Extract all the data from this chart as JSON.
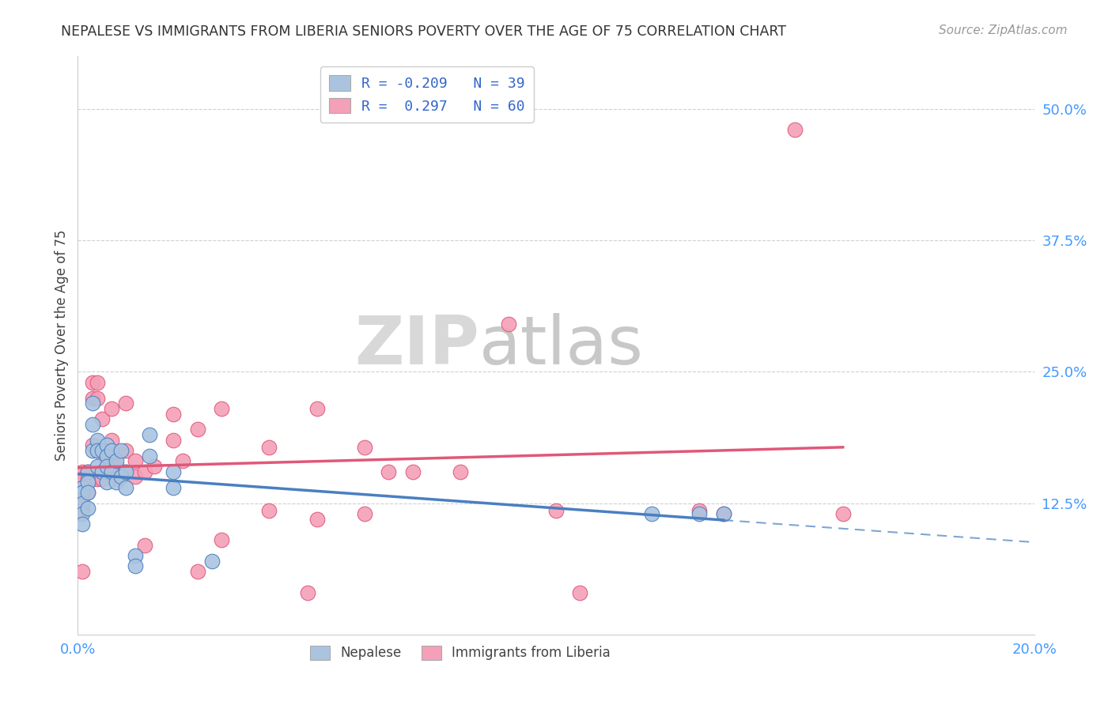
{
  "title": "NEPALESE VS IMMIGRANTS FROM LIBERIA SENIORS POVERTY OVER THE AGE OF 75 CORRELATION CHART",
  "source": "Source: ZipAtlas.com",
  "ylabel": "Seniors Poverty Over the Age of 75",
  "x_min": 0.0,
  "x_max": 0.2,
  "y_min": 0.0,
  "y_max": 0.55,
  "x_ticks": [
    0.0,
    0.04,
    0.08,
    0.12,
    0.16,
    0.2
  ],
  "x_tick_labels": [
    "0.0%",
    "",
    "",
    "",
    "",
    "20.0%"
  ],
  "y_tick_labels": [
    "12.5%",
    "25.0%",
    "37.5%",
    "50.0%"
  ],
  "y_ticks": [
    0.125,
    0.25,
    0.375,
    0.5
  ],
  "nepalese_color": "#aac4e0",
  "liberia_color": "#f4a0b8",
  "nepalese_line_color": "#4a7fc1",
  "liberia_line_color": "#e05878",
  "nepalese_R": -0.209,
  "nepalese_N": 39,
  "liberia_R": 0.297,
  "liberia_N": 60,
  "legend_label_nepalese": "Nepalese",
  "legend_label_liberia": "Immigrants from Liberia",
  "watermark_zip": "ZIP",
  "watermark_atlas": "atlas",
  "nepalese_x": [
    0.001,
    0.001,
    0.001,
    0.001,
    0.001,
    0.002,
    0.002,
    0.002,
    0.002,
    0.003,
    0.003,
    0.003,
    0.004,
    0.004,
    0.004,
    0.005,
    0.005,
    0.006,
    0.006,
    0.006,
    0.006,
    0.007,
    0.007,
    0.008,
    0.008,
    0.009,
    0.009,
    0.01,
    0.01,
    0.012,
    0.012,
    0.015,
    0.015,
    0.02,
    0.02,
    0.028,
    0.12,
    0.13,
    0.135
  ],
  "nepalese_y": [
    0.14,
    0.135,
    0.125,
    0.115,
    0.105,
    0.155,
    0.145,
    0.135,
    0.12,
    0.22,
    0.2,
    0.175,
    0.185,
    0.175,
    0.16,
    0.175,
    0.155,
    0.18,
    0.17,
    0.16,
    0.145,
    0.175,
    0.155,
    0.165,
    0.145,
    0.175,
    0.15,
    0.155,
    0.14,
    0.075,
    0.065,
    0.19,
    0.17,
    0.155,
    0.14,
    0.07,
    0.115,
    0.115,
    0.115
  ],
  "liberia_x": [
    0.001,
    0.001,
    0.001,
    0.001,
    0.001,
    0.001,
    0.002,
    0.002,
    0.002,
    0.003,
    0.003,
    0.003,
    0.003,
    0.004,
    0.004,
    0.004,
    0.004,
    0.005,
    0.005,
    0.005,
    0.006,
    0.006,
    0.006,
    0.007,
    0.007,
    0.007,
    0.008,
    0.008,
    0.01,
    0.01,
    0.01,
    0.012,
    0.012,
    0.014,
    0.014,
    0.016,
    0.02,
    0.02,
    0.022,
    0.025,
    0.025,
    0.03,
    0.03,
    0.04,
    0.04,
    0.048,
    0.05,
    0.05,
    0.06,
    0.06,
    0.065,
    0.07,
    0.08,
    0.09,
    0.1,
    0.105,
    0.13,
    0.135,
    0.15,
    0.16
  ],
  "liberia_y": [
    0.155,
    0.148,
    0.135,
    0.125,
    0.118,
    0.06,
    0.155,
    0.148,
    0.135,
    0.24,
    0.225,
    0.18,
    0.148,
    0.24,
    0.225,
    0.175,
    0.148,
    0.205,
    0.175,
    0.148,
    0.175,
    0.165,
    0.155,
    0.215,
    0.185,
    0.165,
    0.16,
    0.148,
    0.22,
    0.175,
    0.155,
    0.165,
    0.15,
    0.155,
    0.085,
    0.16,
    0.21,
    0.185,
    0.165,
    0.195,
    0.06,
    0.215,
    0.09,
    0.178,
    0.118,
    0.04,
    0.215,
    0.11,
    0.178,
    0.115,
    0.155,
    0.155,
    0.155,
    0.295,
    0.118,
    0.04,
    0.118,
    0.115,
    0.48,
    0.115
  ],
  "background_color": "#ffffff",
  "grid_color": "#d0d0d0"
}
